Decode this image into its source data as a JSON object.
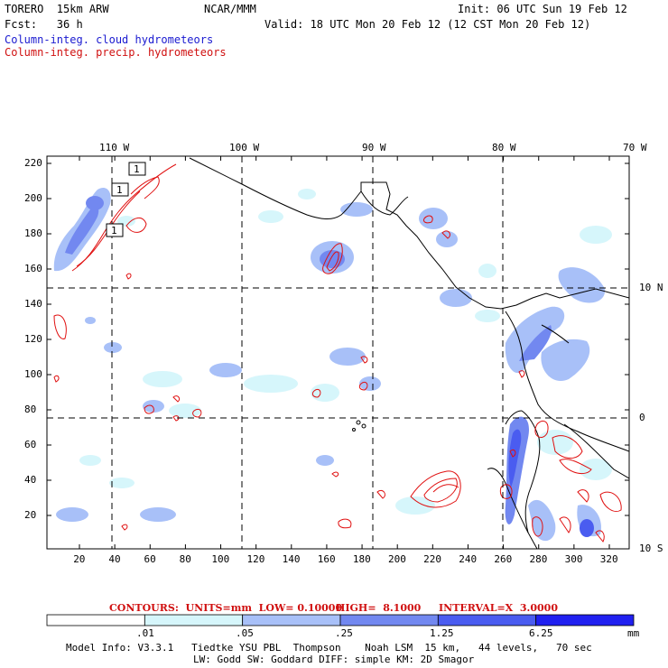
{
  "header": {
    "model": "TORERO  15km ARW",
    "org": "NCAR/MMM",
    "init": "Init: 06 UTC Sun 19 Feb 12",
    "fcst": "Fcst:   36 h",
    "valid": "Valid: 18 UTC Mon 20 Feb 12 (12 CST Mon 20 Feb 12)",
    "legend_cloud": "Column-integ. cloud hydrometeors",
    "legend_precip": "Column-integ. precip. hydrometeors"
  },
  "colors": {
    "cloud_light": "#d6f6fb",
    "cloud_mid": "#a8c0f8",
    "cloud_dark": "#7288f0",
    "cloud_deep": "#4a5cf0",
    "cloud_max": "#2020f0",
    "precip": "#e01010",
    "land": "#000000"
  },
  "map": {
    "top_lon_labels": [
      "110 W",
      "100 W",
      "90 W",
      "80 W",
      "70 W"
    ],
    "right_lat_labels": [
      "10 N",
      "0",
      "10 S"
    ],
    "x_ticks": [
      "20",
      "40",
      "60",
      "80",
      "100",
      "120",
      "140",
      "160",
      "180",
      "200",
      "220",
      "240",
      "260",
      "280",
      "300",
      "320"
    ],
    "y_ticks": [
      "220",
      "200",
      "180",
      "160",
      "140",
      "120",
      "100",
      "80",
      "60",
      "40",
      "20"
    ],
    "contour_labels": [
      "1",
      "1",
      "1"
    ]
  },
  "contours_line": {
    "prefix": "CONTOURS:  UNITS=mm  LOW= 0.10000",
    "high": "HIGH=  8.1000",
    "interval": "INTERVAL=X  3.0000"
  },
  "colorbar": {
    "labels": [
      ".01",
      ".05",
      ".25",
      "1.25",
      "6.25",
      "mm"
    ],
    "bins": [
      "#ffffff",
      "#d6f6fb",
      "#a8c0f8",
      "#7288f0",
      "#4a5cf0",
      "#2020f0"
    ]
  },
  "footer": {
    "line1": "Model Info: V3.3.1   Tiedtke YSU PBL  Thompson    Noah LSM  15 km,   44 levels,   70 sec",
    "line2": "LW: Godd SW: Goddard DIFF: simple KM: 2D Smagor"
  }
}
